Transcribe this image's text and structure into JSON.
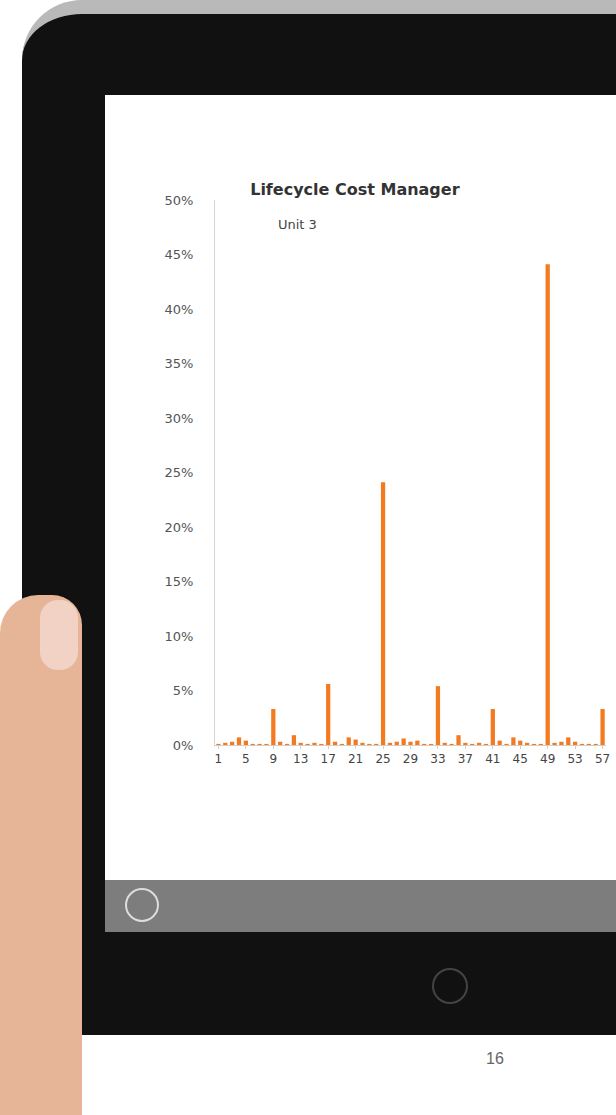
{
  "chart_data": {
    "type": "bar",
    "title": "Lifecycle Cost Manager",
    "subtitle": "Unit 3",
    "categories": [
      "1",
      null,
      null,
      null,
      "5",
      null,
      null,
      null,
      "9",
      null,
      null,
      null,
      "13",
      null,
      null,
      null,
      "17",
      null,
      null,
      null,
      "21",
      null,
      null,
      null,
      "25",
      null,
      null,
      null,
      "29",
      null,
      null,
      null,
      "33",
      null,
      null,
      null,
      "37",
      null,
      null,
      null,
      "41",
      null,
      null,
      null,
      "45",
      null,
      null,
      null,
      "49",
      null,
      null,
      null,
      "53",
      null,
      null,
      null,
      "57"
    ],
    "values": [
      0.1,
      0.2,
      0.3,
      0.7,
      0.4,
      0.1,
      0.1,
      0.1,
      3.3,
      0.3,
      0.1,
      0.9,
      0.2,
      0.1,
      0.2,
      0.1,
      5.6,
      0.3,
      0.1,
      0.7,
      0.5,
      0.2,
      0.1,
      0.1,
      24.1,
      0.2,
      0.3,
      0.6,
      0.3,
      0.4,
      0.1,
      0.1,
      5.4,
      0.2,
      0.1,
      0.9,
      0.2,
      0.1,
      0.2,
      0.1,
      3.3,
      0.4,
      0.1,
      0.7,
      0.4,
      0.2,
      0.1,
      0.1,
      44.1,
      0.2,
      0.3,
      0.7,
      0.3,
      0.1,
      0.1,
      0.1,
      3.3
    ],
    "color": "#f47a20",
    "ylim": [
      0,
      50
    ],
    "yticks": [
      {
        "value": 0,
        "label": "0%"
      },
      {
        "value": 5,
        "label": "5%"
      },
      {
        "value": 10,
        "label": "10%"
      },
      {
        "value": 15,
        "label": "15%"
      },
      {
        "value": 20,
        "label": "20%"
      },
      {
        "value": 25,
        "label": "25%"
      },
      {
        "value": 30,
        "label": "30%"
      },
      {
        "value": 35,
        "label": "35%"
      },
      {
        "value": 40,
        "label": "40%"
      },
      {
        "value": 45,
        "label": "45%"
      },
      {
        "value": 50,
        "label": "50%"
      }
    ],
    "grid": false,
    "data_labels": false
  },
  "footer": "16"
}
